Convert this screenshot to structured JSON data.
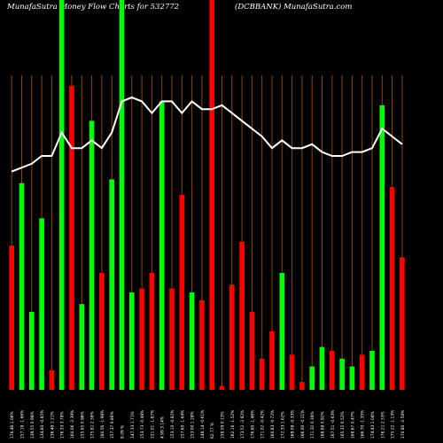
{
  "chart_data": {
    "type": "bar",
    "title_left": "MunafaSutra  Money Flow  Charts for 532772",
    "title_right": "(DCBBANK) MunafaSutra.com",
    "ylim": [
      0,
      100
    ],
    "colors": {
      "background": "#000000",
      "up": "#00ff00",
      "down": "#ff0000",
      "line": "#ffffff",
      "gridline": "#8B4513"
    },
    "bars": [
      {
        "value": 37,
        "color": "red"
      },
      {
        "value": 53,
        "color": "green"
      },
      {
        "value": 20,
        "color": "green"
      },
      {
        "value": 44,
        "color": "green"
      },
      {
        "value": 5,
        "color": "red"
      },
      {
        "value": 100,
        "color": "green"
      },
      {
        "value": 78,
        "color": "red"
      },
      {
        "value": 22,
        "color": "green"
      },
      {
        "value": 69,
        "color": "green"
      },
      {
        "value": 30,
        "color": "red"
      },
      {
        "value": 54,
        "color": "green"
      },
      {
        "value": 100,
        "color": "green"
      },
      {
        "value": 25,
        "color": "green"
      },
      {
        "value": 26,
        "color": "red"
      },
      {
        "value": 30,
        "color": "red"
      },
      {
        "value": 74,
        "color": "green"
      },
      {
        "value": 26,
        "color": "red"
      },
      {
        "value": 50,
        "color": "red"
      },
      {
        "value": 25,
        "color": "green"
      },
      {
        "value": 23,
        "color": "red"
      },
      {
        "value": 100,
        "color": "red"
      },
      {
        "value": 1,
        "color": "red"
      },
      {
        "value": 27,
        "color": "red"
      },
      {
        "value": 38,
        "color": "red"
      },
      {
        "value": 20,
        "color": "red"
      },
      {
        "value": 8,
        "color": "red"
      },
      {
        "value": 15,
        "color": "red"
      },
      {
        "value": 30,
        "color": "green"
      },
      {
        "value": 9,
        "color": "red"
      },
      {
        "value": 2,
        "color": "red"
      },
      {
        "value": 6,
        "color": "green"
      },
      {
        "value": 11,
        "color": "green"
      },
      {
        "value": 10,
        "color": "red"
      },
      {
        "value": 8,
        "color": "green"
      },
      {
        "value": 6,
        "color": "green"
      },
      {
        "value": 9,
        "color": "red"
      },
      {
        "value": 10,
        "color": "green"
      },
      {
        "value": 73,
        "color": "green"
      },
      {
        "value": 52,
        "color": "red"
      },
      {
        "value": 34,
        "color": "red"
      }
    ],
    "line": [
      56,
      57,
      58,
      60,
      60,
      66,
      62,
      62,
      64,
      62,
      66,
      74,
      75,
      74,
      71,
      74,
      74,
      71,
      74,
      72,
      72,
      73,
      71,
      69,
      67,
      65,
      62,
      64,
      62,
      62,
      63,
      61,
      60,
      60,
      61,
      61,
      62,
      67,
      65,
      63
    ],
    "x_labels": [
      "176.46  1.06%",
      "157.18  -1.66%",
      "139.55  0.98%",
      "134.80  -0.85%",
      "136.48  1.21%",
      "176.33  3.78%",
      "160.06  -2.39%",
      "155.85  0.96%",
      "175.81  2.56%",
      "180.56  -1.98%",
      "157.37  0.86%",
      "8.09  %",
      "147.33  1.71%",
      "153.73  -0.48%",
      "151.01  -1.87%",
      "4.99  3.14%",
      "153.10  -0.82%",
      "157.60  -1.64%",
      "153.00  1.28%",
      "148.14  -0.61%",
      "62.77  %",
      "158.09  0.13%",
      "162.16  -1.52%",
      "173.52  -2.82%",
      "176.60  -1.46%",
      "171.02  -0.42%",
      "160.83  -0.72%",
      "172.33  1.62%",
      "169.08  -0.33%",
      "166.00  -0.21%",
      "171.32  0.38%",
      "168.88  0.92%",
      "167.51  -0.63%",
      "165.35  0.52%",
      "168.67  0.47%",
      "166.70  -1.35%",
      "174.43  1.04%",
      "176.21  2.53%",
      "175.22  -1.13%",
      "170.80  -2.58%"
    ]
  }
}
